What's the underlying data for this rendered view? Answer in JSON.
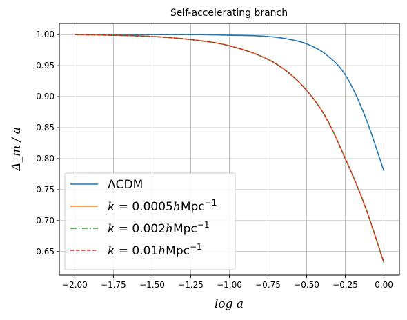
{
  "chart_data": {
    "type": "line",
    "title": "Self-accelerating branch",
    "xlabel": "log a",
    "ylabel": "Δ_m / a",
    "xlim": [
      -2.1,
      0.1
    ],
    "ylim": [
      0.612,
      1.018
    ],
    "xticks": [
      -2.0,
      -1.75,
      -1.5,
      -1.25,
      -1.0,
      -0.75,
      -0.5,
      -0.25,
      0.0
    ],
    "xtick_labels": [
      "−2.00",
      "−1.75",
      "−1.50",
      "−1.25",
      "−1.00",
      "−0.75",
      "−0.50",
      "−0.25",
      "0.00"
    ],
    "yticks": [
      0.65,
      0.7,
      0.75,
      0.8,
      0.85,
      0.9,
      0.95,
      1.0
    ],
    "ytick_labels": [
      "0.65",
      "0.70",
      "0.75",
      "0.80",
      "0.85",
      "0.90",
      "0.95",
      "1.00"
    ],
    "grid": true,
    "legend_position": "lower-left",
    "x": [
      -2.0,
      -1.75,
      -1.5,
      -1.25,
      -1.0,
      -0.75,
      -0.625,
      -0.5,
      -0.375,
      -0.25,
      -0.125,
      0.0
    ],
    "series": [
      {
        "name": "ΛCDM",
        "legend_parts": [
          {
            "t": "ΛCDM"
          }
        ],
        "color": "#1f77b4",
        "style": "solid",
        "values": [
          1.0,
          1.0,
          1.0,
          1.0,
          0.999,
          0.997,
          0.993,
          0.985,
          0.968,
          0.935,
          0.87,
          0.78
        ]
      },
      {
        "name": "k = 0.0005hMpc−1",
        "legend_parts": [
          {
            "t": "k",
            "i": true
          },
          {
            "t": " = 0.0005"
          },
          {
            "t": "h",
            "i": true
          },
          {
            "t": "Mpc"
          },
          {
            "t": "−1",
            "sup": true
          }
        ],
        "color": "#ff7f0e",
        "style": "solid",
        "values": [
          1.0,
          0.999,
          0.997,
          0.992,
          0.982,
          0.96,
          0.94,
          0.91,
          0.866,
          0.8,
          0.725,
          0.632
        ]
      },
      {
        "name": "k = 0.002hMpc−1",
        "legend_parts": [
          {
            "t": "k",
            "i": true
          },
          {
            "t": " = 0.002"
          },
          {
            "t": "h",
            "i": true
          },
          {
            "t": "Mpc"
          },
          {
            "t": "−1",
            "sup": true
          }
        ],
        "color": "#2ca02c",
        "style": "dashdot",
        "values": [
          1.0,
          0.999,
          0.997,
          0.992,
          0.982,
          0.96,
          0.94,
          0.91,
          0.866,
          0.8,
          0.725,
          0.632
        ]
      },
      {
        "name": "k = 0.01hMpc−1",
        "legend_parts": [
          {
            "t": "k",
            "i": true
          },
          {
            "t": " = 0.01"
          },
          {
            "t": "h",
            "i": true
          },
          {
            "t": "Mpc"
          },
          {
            "t": "−1",
            "sup": true
          }
        ],
        "color": "#d62728",
        "style": "dashed",
        "values": [
          1.0,
          0.999,
          0.997,
          0.992,
          0.982,
          0.96,
          0.94,
          0.91,
          0.866,
          0.8,
          0.725,
          0.632
        ]
      }
    ]
  }
}
